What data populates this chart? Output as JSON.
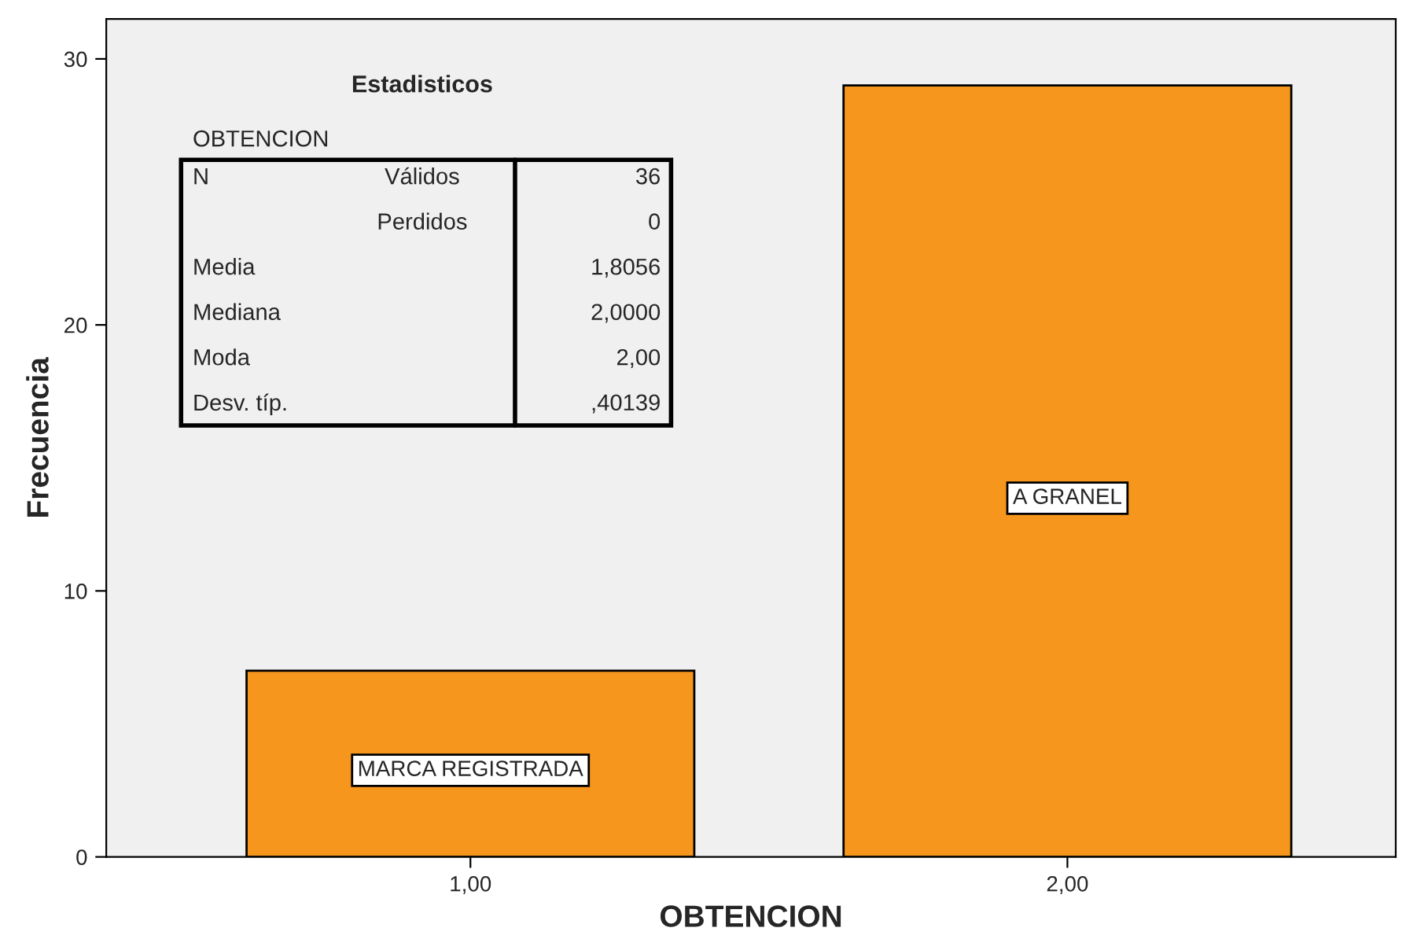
{
  "chart_data": {
    "type": "bar",
    "xlabel": "OBTENCION",
    "ylabel": "Frecuencia",
    "categories": [
      "1,00",
      "2,00"
    ],
    "values": [
      7,
      29
    ],
    "color": "#f7961d",
    "ylim": [
      0,
      31.5
    ],
    "yticks": [
      0,
      10,
      20,
      30
    ],
    "grid": false,
    "annotations": [
      "MARCA REGISTRADA",
      "A GRANEL",
      "Estadisticos",
      "OBTENCION",
      "N",
      "Válidos",
      "36",
      "Perdidos",
      "0",
      "Media",
      "1,8056",
      "Mediana",
      "2,0000",
      "Moda",
      "2,00",
      "Desv. típ.",
      ",40139"
    ]
  }
}
